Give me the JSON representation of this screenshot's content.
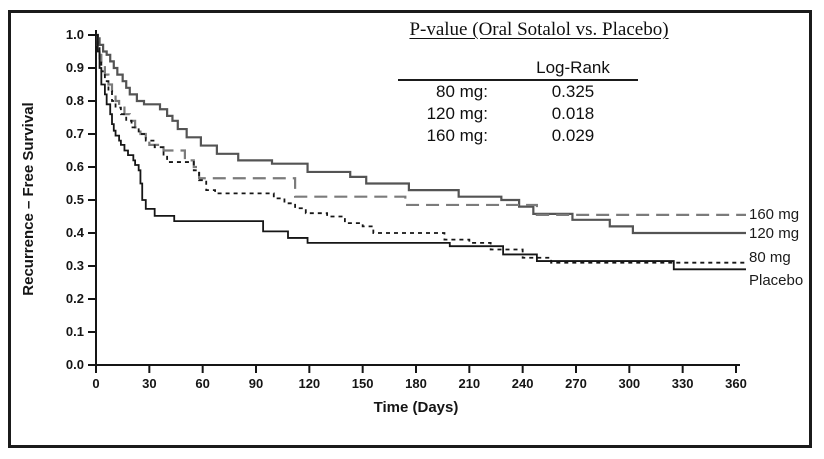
{
  "figure": {
    "pvalue_panel": {
      "title": "P-value (Oral Sotalol vs. Placebo)",
      "column_header": "Log-Rank",
      "rows": [
        {
          "label": "80 mg:",
          "value": "0.325"
        },
        {
          "label": "120 mg:",
          "value": "0.018"
        },
        {
          "label": "160 mg:",
          "value": "0.029"
        }
      ]
    }
  },
  "chart_data": {
    "type": "line",
    "subtype": "kaplan-meier-step",
    "title": "",
    "xlabel": "Time  (Days)",
    "ylabel": "Recurrence – Free Survival",
    "xlim": [
      0,
      360
    ],
    "ylim": [
      0.0,
      1.0
    ],
    "grid": false,
    "legend_position": "right-end-of-curves",
    "xtick_labels": [
      "0",
      "30",
      "60",
      "90",
      "120",
      "150",
      "180",
      "210",
      "240",
      "270",
      "300",
      "330",
      "360"
    ],
    "xtick_values": [
      0,
      30,
      60,
      90,
      120,
      150,
      180,
      210,
      240,
      270,
      300,
      330,
      360
    ],
    "ytick_labels": [
      "0.0",
      "0.1",
      "0.2",
      "0.3",
      "0.4",
      "0.5",
      "0.6",
      "0.7",
      "0.8",
      "0.9",
      "1.0"
    ],
    "ytick_values": [
      0.0,
      0.1,
      0.2,
      0.3,
      0.4,
      0.5,
      0.6,
      0.7,
      0.8,
      0.9,
      1.0
    ],
    "axis_color": "#151515",
    "series": [
      {
        "name": "120 mg",
        "style": "solid",
        "color": "#545454",
        "width": 2.2,
        "label_dy": 1,
        "points": [
          [
            0,
            1.0
          ],
          [
            1,
            0.99
          ],
          [
            2,
            0.97
          ],
          [
            4,
            0.95
          ],
          [
            6,
            0.94
          ],
          [
            8,
            0.92
          ],
          [
            10,
            0.9
          ],
          [
            12,
            0.88
          ],
          [
            15,
            0.86
          ],
          [
            17,
            0.84
          ],
          [
            19,
            0.82
          ],
          [
            23,
            0.8
          ],
          [
            27,
            0.79
          ],
          [
            36,
            0.775
          ],
          [
            40,
            0.755
          ],
          [
            43,
            0.74
          ],
          [
            46,
            0.715
          ],
          [
            51,
            0.69
          ],
          [
            59,
            0.665
          ],
          [
            68,
            0.64
          ],
          [
            80,
            0.62
          ],
          [
            99,
            0.61
          ],
          [
            119,
            0.585
          ],
          [
            143,
            0.57
          ],
          [
            152,
            0.55
          ],
          [
            176,
            0.53
          ],
          [
            204,
            0.51
          ],
          [
            228,
            0.5
          ],
          [
            238,
            0.48
          ],
          [
            246,
            0.458
          ],
          [
            268,
            0.44
          ],
          [
            289,
            0.42
          ],
          [
            302,
            0.4
          ],
          [
            360,
            0.4
          ]
        ]
      },
      {
        "name": "160 mg",
        "style": "long-dash",
        "color": "#7b7b7b",
        "width": 2.2,
        "label_dy": 0,
        "points": [
          [
            0,
            1.0
          ],
          [
            1,
            0.97
          ],
          [
            2,
            0.94
          ],
          [
            3,
            0.91
          ],
          [
            5,
            0.88
          ],
          [
            7,
            0.85
          ],
          [
            9,
            0.82
          ],
          [
            11,
            0.8
          ],
          [
            13,
            0.78
          ],
          [
            16,
            0.76
          ],
          [
            19,
            0.74
          ],
          [
            22,
            0.72
          ],
          [
            25,
            0.7
          ],
          [
            28,
            0.68
          ],
          [
            30,
            0.667
          ],
          [
            38,
            0.65
          ],
          [
            50,
            0.62
          ],
          [
            55,
            0.6
          ],
          [
            58,
            0.566
          ],
          [
            112,
            0.51
          ],
          [
            174,
            0.485
          ],
          [
            248,
            0.455
          ],
          [
            360,
            0.455
          ]
        ]
      },
      {
        "name": "80 mg",
        "style": "short-dash",
        "color": "#161616",
        "width": 1.8,
        "label_dy": -5,
        "points": [
          [
            0,
            1.0
          ],
          [
            1,
            0.96
          ],
          [
            2,
            0.92
          ],
          [
            3,
            0.89
          ],
          [
            5,
            0.86
          ],
          [
            7,
            0.83
          ],
          [
            9,
            0.8
          ],
          [
            11,
            0.78
          ],
          [
            14,
            0.76
          ],
          [
            17,
            0.74
          ],
          [
            20,
            0.72
          ],
          [
            24,
            0.7
          ],
          [
            28,
            0.68
          ],
          [
            33,
            0.66
          ],
          [
            38,
            0.635
          ],
          [
            40,
            0.615
          ],
          [
            55,
            0.59
          ],
          [
            58,
            0.56
          ],
          [
            62,
            0.53
          ],
          [
            67,
            0.52
          ],
          [
            100,
            0.505
          ],
          [
            106,
            0.49
          ],
          [
            112,
            0.475
          ],
          [
            118,
            0.46
          ],
          [
            130,
            0.45
          ],
          [
            140,
            0.43
          ],
          [
            150,
            0.42
          ],
          [
            156,
            0.4
          ],
          [
            196,
            0.38
          ],
          [
            210,
            0.37
          ],
          [
            222,
            0.35
          ],
          [
            240,
            0.325
          ],
          [
            256,
            0.31
          ],
          [
            360,
            0.31
          ]
        ]
      },
      {
        "name": "Placebo",
        "style": "solid",
        "color": "#161616",
        "width": 1.8,
        "label_dy": 12,
        "points": [
          [
            0,
            1.0
          ],
          [
            1,
            0.95
          ],
          [
            2,
            0.9
          ],
          [
            3,
            0.85
          ],
          [
            5,
            0.82
          ],
          [
            6,
            0.79
          ],
          [
            8,
            0.76
          ],
          [
            9,
            0.73
          ],
          [
            10,
            0.71
          ],
          [
            11,
            0.695
          ],
          [
            13,
            0.68
          ],
          [
            14,
            0.667
          ],
          [
            16,
            0.65
          ],
          [
            18,
            0.636
          ],
          [
            21,
            0.62
          ],
          [
            22,
            0.606
          ],
          [
            24,
            0.59
          ],
          [
            25,
            0.55
          ],
          [
            26,
            0.5
          ],
          [
            28,
            0.473
          ],
          [
            33,
            0.452
          ],
          [
            44,
            0.436
          ],
          [
            94,
            0.405
          ],
          [
            108,
            0.385
          ],
          [
            119,
            0.37
          ],
          [
            199,
            0.36
          ],
          [
            229,
            0.335
          ],
          [
            248,
            0.315
          ],
          [
            325,
            0.29
          ],
          [
            360,
            0.29
          ]
        ]
      }
    ]
  }
}
